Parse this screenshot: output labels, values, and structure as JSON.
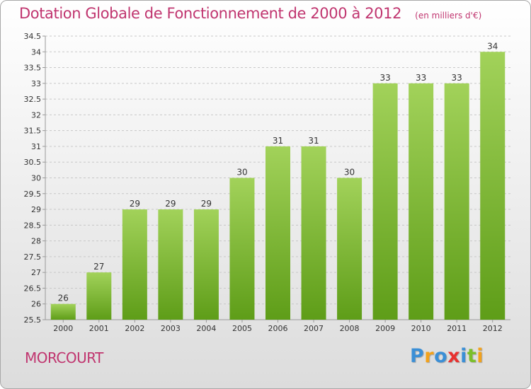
{
  "chart_data": {
    "type": "bar",
    "title": "Dotation Globale de Fonctionnement de 2000 à 2012",
    "subtitle": "(en milliers d'€)",
    "categories": [
      "2000",
      "2001",
      "2002",
      "2003",
      "2004",
      "2005",
      "2006",
      "2007",
      "2008",
      "2009",
      "2010",
      "2011",
      "2012"
    ],
    "values": [
      26,
      27,
      29,
      29,
      29,
      30,
      31,
      31,
      30,
      33,
      33,
      33,
      34
    ],
    "value_labels": [
      "26",
      "27",
      "29",
      "29",
      "29",
      "30",
      "31",
      "31",
      "30",
      "33",
      "33",
      "33",
      "34"
    ],
    "ylim": [
      25.5,
      34.5
    ],
    "yticks": [
      25.5,
      26,
      26.5,
      27,
      27.5,
      28,
      28.5,
      29,
      29.5,
      30,
      30.5,
      31,
      31.5,
      32,
      32.5,
      33,
      33.5,
      34,
      34.5
    ],
    "ytick_labels": [
      "25.5",
      "26",
      "26.5",
      "27",
      "27.5",
      "28",
      "28.5",
      "29",
      "29.5",
      "30",
      "30.5",
      "31",
      "31.5",
      "32",
      "32.5",
      "33",
      "33.5",
      "34",
      "34.5"
    ],
    "xlabel": "",
    "ylabel": "",
    "grid": "horizontal-dashed",
    "colors": {
      "bar_light": "#a2d25a",
      "bar_dark": "#5e9d18",
      "title": "#c0356f",
      "axis": "#999999",
      "grid": "#c8c8c8"
    }
  },
  "footer": {
    "commune": "MORCOURT",
    "brand_letters": [
      "P",
      "r",
      "o",
      "x",
      "i",
      "t",
      "i"
    ],
    "brand_colors": [
      "#3b8fd6",
      "#f2a21c",
      "#3b8fd6",
      "#e8312f",
      "#3b8fd6",
      "#7bbf2a",
      "#f2a21c"
    ]
  }
}
